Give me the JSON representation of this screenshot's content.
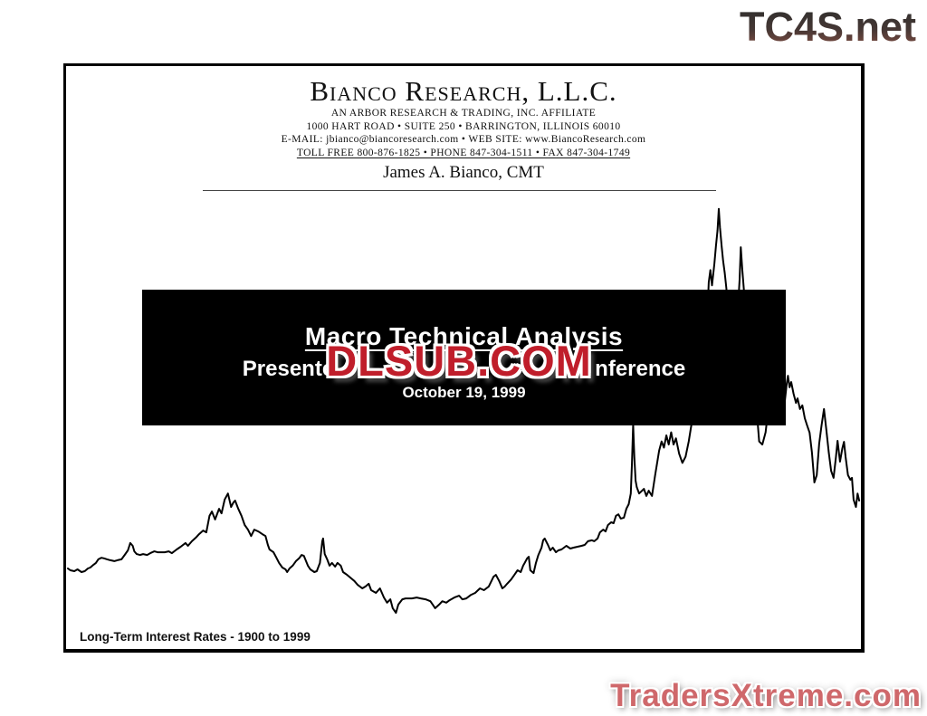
{
  "watermarks": {
    "top_right": "TC4S.net",
    "center_overlay": "DLSUB.COM",
    "bottom_right": "TradersXtreme.com"
  },
  "header": {
    "company": "Bianco Research, L.L.C.",
    "affiliate_line": "AN ARBOR RESEARCH & TRADING, INC. AFFILIATE",
    "address_line": "1000 HART ROAD • SUITE 250 • BARRINGTON, ILLINOIS 60010",
    "contact_line": "E-MAIL:  jbianco@biancoresearch.com  •  WEB SITE:  www.BiancoResearch.com",
    "phone_line": "TOLL FREE  800-876-1825  •  PHONE  847-304-1511  •  FAX  847-304-1749",
    "author": "James A. Bianco, CMT"
  },
  "title_box": {
    "title": "Macro Technical Analysis",
    "subtitle_visible_left": "Presente",
    "subtitle_visible_right": "nference",
    "date": "October 19, 1999"
  },
  "colors": {
    "box_background": "#000000",
    "box_text": "#ffffff",
    "dlsub_red": "#c01e2b",
    "tradersxtreme_red": "#cf686b",
    "line_color": "#000000"
  },
  "chart_data": {
    "type": "line",
    "title": "Long-Term Interest Rates - 1900 to 1999",
    "series_name": "Long-Term Interest Rates",
    "x_range": [
      1900,
      1999
    ],
    "y_range_pct": [
      2,
      15.5
    ],
    "grid": false,
    "axes_labels_visible": false,
    "points": [
      [
        1900,
        3.45
      ],
      [
        1900.3,
        3.39
      ],
      [
        1900.8,
        3.36
      ],
      [
        1901.2,
        3.42
      ],
      [
        1901.7,
        3.33
      ],
      [
        1902.1,
        3.36
      ],
      [
        1902.5,
        3.45
      ],
      [
        1902.8,
        3.48
      ],
      [
        1903.2,
        3.57
      ],
      [
        1903.5,
        3.63
      ],
      [
        1903.8,
        3.75
      ],
      [
        1904.2,
        3.8
      ],
      [
        1904.5,
        3.78
      ],
      [
        1904.9,
        3.75
      ],
      [
        1905.3,
        3.72
      ],
      [
        1905.8,
        3.69
      ],
      [
        1906.2,
        3.72
      ],
      [
        1906.7,
        3.75
      ],
      [
        1907.1,
        3.89
      ],
      [
        1907.5,
        4.04
      ],
      [
        1907.8,
        4.28
      ],
      [
        1908.1,
        4.19
      ],
      [
        1908.3,
        4.01
      ],
      [
        1908.6,
        3.92
      ],
      [
        1909,
        3.89
      ],
      [
        1909.4,
        3.92
      ],
      [
        1909.9,
        3.89
      ],
      [
        1910.3,
        3.95
      ],
      [
        1910.8,
        4.01
      ],
      [
        1911.2,
        3.98
      ],
      [
        1911.7,
        3.98
      ],
      [
        1912.1,
        3.98
      ],
      [
        1912.6,
        4.01
      ],
      [
        1913,
        3.95
      ],
      [
        1913.6,
        4.07
      ],
      [
        1914.1,
        4.16
      ],
      [
        1914.7,
        4.28
      ],
      [
        1915,
        4.19
      ],
      [
        1915.5,
        4.34
      ],
      [
        1916,
        4.46
      ],
      [
        1916.4,
        4.57
      ],
      [
        1916.9,
        4.69
      ],
      [
        1917.3,
        4.63
      ],
      [
        1917.7,
        5.17
      ],
      [
        1918,
        5.31
      ],
      [
        1918.4,
        5.05
      ],
      [
        1918.9,
        5.4
      ],
      [
        1919.2,
        5.25
      ],
      [
        1919.6,
        5.7
      ],
      [
        1920,
        5.9
      ],
      [
        1920.4,
        5.46
      ],
      [
        1920.7,
        5.61
      ],
      [
        1920.9,
        5.67
      ],
      [
        1921.3,
        5.4
      ],
      [
        1921.7,
        5.17
      ],
      [
        1922.1,
        4.87
      ],
      [
        1922.5,
        4.72
      ],
      [
        1922.9,
        4.51
      ],
      [
        1923.3,
        4.72
      ],
      [
        1923.8,
        4.66
      ],
      [
        1924.3,
        4.57
      ],
      [
        1924.7,
        4.51
      ],
      [
        1925,
        4.22
      ],
      [
        1925.2,
        4.07
      ],
      [
        1925.7,
        3.98
      ],
      [
        1926,
        3.83
      ],
      [
        1926.4,
        3.63
      ],
      [
        1926.8,
        3.48
      ],
      [
        1927.2,
        3.42
      ],
      [
        1927.4,
        3.33
      ],
      [
        1927.7,
        3.45
      ],
      [
        1928.1,
        3.54
      ],
      [
        1928.5,
        3.69
      ],
      [
        1928.9,
        3.78
      ],
      [
        1929.2,
        3.89
      ],
      [
        1929.5,
        3.86
      ],
      [
        1930,
        3.54
      ],
      [
        1930.3,
        3.42
      ],
      [
        1930.8,
        3.33
      ],
      [
        1931.1,
        3.36
      ],
      [
        1931.5,
        3.63
      ],
      [
        1931.8,
        4.34
      ],
      [
        1931.9,
        4.43
      ],
      [
        1932.1,
        3.92
      ],
      [
        1932.4,
        3.75
      ],
      [
        1932.7,
        3.54
      ],
      [
        1933,
        3.63
      ],
      [
        1933.4,
        3.51
      ],
      [
        1933.7,
        3.63
      ],
      [
        1934.1,
        3.54
      ],
      [
        1934.4,
        3.33
      ],
      [
        1934.9,
        3.24
      ],
      [
        1935.3,
        3.15
      ],
      [
        1935.8,
        3.04
      ],
      [
        1936.2,
        2.92
      ],
      [
        1936.8,
        2.8
      ],
      [
        1937.2,
        2.86
      ],
      [
        1937.6,
        2.95
      ],
      [
        1937.9,
        2.74
      ],
      [
        1938.5,
        2.65
      ],
      [
        1939,
        2.8
      ],
      [
        1939.5,
        2.5
      ],
      [
        1939.9,
        2.33
      ],
      [
        1940.3,
        2.44
      ],
      [
        1940.6,
        2.15
      ],
      [
        1941,
        2
      ],
      [
        1941.3,
        2.27
      ],
      [
        1941.8,
        2.44
      ],
      [
        1942.2,
        2.47
      ],
      [
        1943,
        2.47
      ],
      [
        1943.6,
        2.5
      ],
      [
        1944.1,
        2.47
      ],
      [
        1944.7,
        2.44
      ],
      [
        1945.3,
        2.38
      ],
      [
        1945.6,
        2.27
      ],
      [
        1945.9,
        2.15
      ],
      [
        1946.4,
        2.27
      ],
      [
        1946.8,
        2.38
      ],
      [
        1947.3,
        2.33
      ],
      [
        1947.7,
        2.41
      ],
      [
        1948.3,
        2.5
      ],
      [
        1948.9,
        2.56
      ],
      [
        1949.3,
        2.44
      ],
      [
        1949.8,
        2.47
      ],
      [
        1950.4,
        2.59
      ],
      [
        1950.9,
        2.65
      ],
      [
        1951.5,
        2.8
      ],
      [
        1952,
        2.74
      ],
      [
        1952.6,
        2.86
      ],
      [
        1953.2,
        3.18
      ],
      [
        1953.5,
        3.24
      ],
      [
        1953.9,
        3.04
      ],
      [
        1954.3,
        2.8
      ],
      [
        1954.6,
        2.86
      ],
      [
        1954.9,
        2.95
      ],
      [
        1955.4,
        3.09
      ],
      [
        1955.8,
        3.24
      ],
      [
        1956.2,
        3.39
      ],
      [
        1956.6,
        3.33
      ],
      [
        1956.9,
        3.54
      ],
      [
        1957.1,
        3.63
      ],
      [
        1957.4,
        3.78
      ],
      [
        1957.6,
        3.83
      ],
      [
        1957.8,
        3.39
      ],
      [
        1958.2,
        3.3
      ],
      [
        1958.5,
        3.63
      ],
      [
        1958.8,
        3.89
      ],
      [
        1959.2,
        4.13
      ],
      [
        1959.4,
        4.37
      ],
      [
        1959.6,
        4.43
      ],
      [
        1960,
        4.22
      ],
      [
        1960.3,
        4.04
      ],
      [
        1960.6,
        4.13
      ],
      [
        1961,
        3.98
      ],
      [
        1961.3,
        4.04
      ],
      [
        1961.7,
        4.07
      ],
      [
        1962,
        4.13
      ],
      [
        1962.3,
        4.19
      ],
      [
        1962.8,
        4.1
      ],
      [
        1963.2,
        4.13
      ],
      [
        1963.7,
        4.16
      ],
      [
        1964.2,
        4.19
      ],
      [
        1964.6,
        4.22
      ],
      [
        1965,
        4.34
      ],
      [
        1965.5,
        4.37
      ],
      [
        1965.8,
        4.34
      ],
      [
        1966.2,
        4.43
      ],
      [
        1966.5,
        4.63
      ],
      [
        1966.9,
        4.72
      ],
      [
        1967.2,
        4.66
      ],
      [
        1967.5,
        4.87
      ],
      [
        1967.9,
        4.96
      ],
      [
        1968.2,
        4.93
      ],
      [
        1968.5,
        5.17
      ],
      [
        1968.8,
        5.22
      ],
      [
        1969.1,
        5.08
      ],
      [
        1969.5,
        5.11
      ],
      [
        1969.8,
        5.4
      ],
      [
        1970.1,
        5.55
      ],
      [
        1970.35,
        5.9
      ],
      [
        1970.5,
        6.9
      ],
      [
        1970.65,
        8.15
      ],
      [
        1970.8,
        7.1
      ],
      [
        1970.95,
        6.32
      ],
      [
        1971.1,
        6.11
      ],
      [
        1971.4,
        5.9
      ],
      [
        1972,
        6.05
      ],
      [
        1972.3,
        5.82
      ],
      [
        1972.6,
        5.99
      ],
      [
        1973,
        5.82
      ],
      [
        1973.4,
        6.5
      ],
      [
        1973.9,
        7.3
      ],
      [
        1974.2,
        7.6
      ],
      [
        1974.5,
        7.4
      ],
      [
        1974.8,
        7.8
      ],
      [
        1975.1,
        7.5
      ],
      [
        1975.4,
        7.9
      ],
      [
        1975.7,
        7.5
      ],
      [
        1976,
        7.7
      ],
      [
        1976.4,
        7.2
      ],
      [
        1976.8,
        6.9
      ],
      [
        1977.2,
        7.1
      ],
      [
        1977.6,
        7.6
      ],
      [
        1977.9,
        8.1
      ],
      [
        1978.3,
        8.5
      ],
      [
        1978.7,
        8.9
      ],
      [
        1979,
        9.2
      ],
      [
        1979.3,
        9.6
      ],
      [
        1979.6,
        10.3
      ],
      [
        1979.9,
        11.6
      ],
      [
        1980.1,
        12.8
      ],
      [
        1980.3,
        13.2
      ],
      [
        1980.5,
        12.7
      ],
      [
        1980.8,
        13.4
      ],
      [
        1981,
        14
      ],
      [
        1981.2,
        14.5
      ],
      [
        1981.35,
        15.2
      ],
      [
        1981.5,
        14.6
      ],
      [
        1981.7,
        14
      ],
      [
        1981.9,
        13.5
      ],
      [
        1982.1,
        13.1
      ],
      [
        1982.3,
        12.6
      ],
      [
        1982.5,
        11.8
      ],
      [
        1982.8,
        11
      ],
      [
        1983.1,
        10.7
      ],
      [
        1983.4,
        11.1
      ],
      [
        1983.7,
        11.7
      ],
      [
        1983.95,
        12.9
      ],
      [
        1984.1,
        13.95
      ],
      [
        1984.3,
        13.2
      ],
      [
        1984.6,
        12.2
      ],
      [
        1985,
        11.3
      ],
      [
        1985.5,
        10.4
      ],
      [
        1986,
        8.9
      ],
      [
        1986.4,
        7.6
      ],
      [
        1986.8,
        7.5
      ],
      [
        1987.2,
        7.9
      ],
      [
        1987.6,
        8.8
      ],
      [
        1987.8,
        9.7
      ],
      [
        1988.1,
        8.9
      ],
      [
        1988.4,
        9.2
      ],
      [
        1988.7,
        9.4
      ],
      [
        1989,
        9
      ],
      [
        1989.3,
        8.5
      ],
      [
        1989.6,
        8.9
      ],
      [
        1989.85,
        9.5
      ],
      [
        1990,
        9.75
      ],
      [
        1990.2,
        9.37
      ],
      [
        1990.4,
        9.54
      ],
      [
        1990.7,
        9.16
      ],
      [
        1991,
        8.86
      ],
      [
        1991.2,
        9.01
      ],
      [
        1991.5,
        8.66
      ],
      [
        1991.8,
        8.78
      ],
      [
        1992.1,
        8.36
      ],
      [
        1992.4,
        8.12
      ],
      [
        1992.7,
        7.89
      ],
      [
        1993,
        7.24
      ],
      [
        1993.3,
        6.26
      ],
      [
        1993.6,
        6.5
      ],
      [
        1993.9,
        7.53
      ],
      [
        1994.2,
        8.12
      ],
      [
        1994.5,
        8.66
      ],
      [
        1994.8,
        7.98
      ],
      [
        1995.1,
        7.24
      ],
      [
        1995.4,
        6.64
      ],
      [
        1995.7,
        6.41
      ],
      [
        1996,
        7.09
      ],
      [
        1996.2,
        7.62
      ],
      [
        1996.5,
        6.94
      ],
      [
        1996.8,
        7.38
      ],
      [
        1997,
        7.59
      ],
      [
        1997.2,
        7.09
      ],
      [
        1997.5,
        6.5
      ],
      [
        1997.8,
        6.35
      ],
      [
        1998,
        6.41
      ],
      [
        1998.2,
        5.7
      ],
      [
        1998.5,
        5.46
      ],
      [
        1998.7,
        5.9
      ],
      [
        1998.9,
        5.67
      ]
    ]
  }
}
